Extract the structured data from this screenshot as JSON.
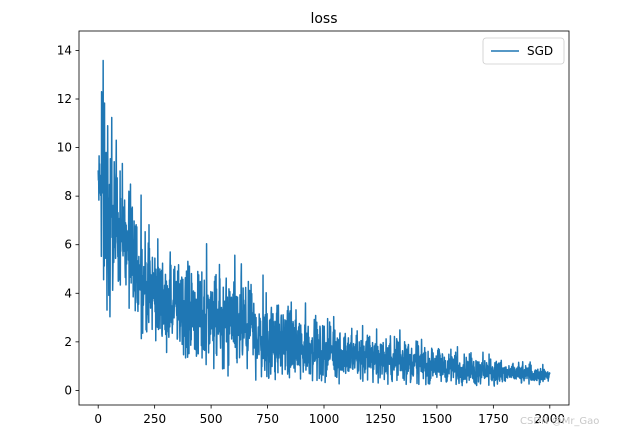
{
  "chart_data": {
    "type": "line",
    "title": "loss",
    "xlabel": "",
    "ylabel": "",
    "xlim": [
      -85,
      2085
    ],
    "ylim": [
      -0.6,
      14.8
    ],
    "xticks": [
      0,
      250,
      500,
      750,
      1000,
      1250,
      1500,
      1750,
      2000
    ],
    "yticks": [
      0,
      2,
      4,
      6,
      8,
      10,
      12,
      14
    ],
    "grid": false,
    "legend_position": "top-right",
    "series": [
      {
        "name": "SGD",
        "color": "#1f77b4",
        "x_start": 0,
        "x_end": 2000,
        "point_count": 2001,
        "envelope_x": [
          0,
          25,
          50,
          100,
          150,
          200,
          250,
          300,
          400,
          500,
          600,
          700,
          800,
          900,
          1000,
          1100,
          1200,
          1300,
          1400,
          1500,
          1600,
          1700,
          1800,
          1900,
          2000
        ],
        "envelope_upper": [
          9.8,
          14.1,
          11.5,
          10.2,
          9.0,
          7.8,
          7.0,
          6.5,
          6.2,
          6.0,
          5.6,
          4.9,
          4.4,
          3.9,
          3.5,
          3.2,
          2.9,
          2.7,
          2.4,
          2.1,
          1.8,
          1.6,
          1.4,
          1.3,
          1.1
        ],
        "envelope_lower": [
          7.5,
          3.5,
          2.7,
          4.0,
          2.5,
          2.2,
          1.8,
          1.6,
          1.0,
          0.7,
          0.5,
          0.4,
          0.3,
          0.3,
          0.3,
          0.3,
          0.3,
          0.25,
          0.2,
          0.2,
          0.2,
          0.2,
          0.2,
          0.2,
          0.3
        ],
        "peaks": [
          {
            "x": 22,
            "y": 14.1
          },
          {
            "x": 15,
            "y": 12.3
          },
          {
            "x": 60,
            "y": 12.0
          },
          {
            "x": 42,
            "y": 10.9
          },
          {
            "x": 80,
            "y": 10.3
          },
          {
            "x": 190,
            "y": 9.7
          },
          {
            "x": 480,
            "y": 7.0
          },
          {
            "x": 605,
            "y": 6.3
          },
          {
            "x": 730,
            "y": 5.5
          }
        ]
      }
    ]
  },
  "watermark": "CSDN @Mr_Gao"
}
